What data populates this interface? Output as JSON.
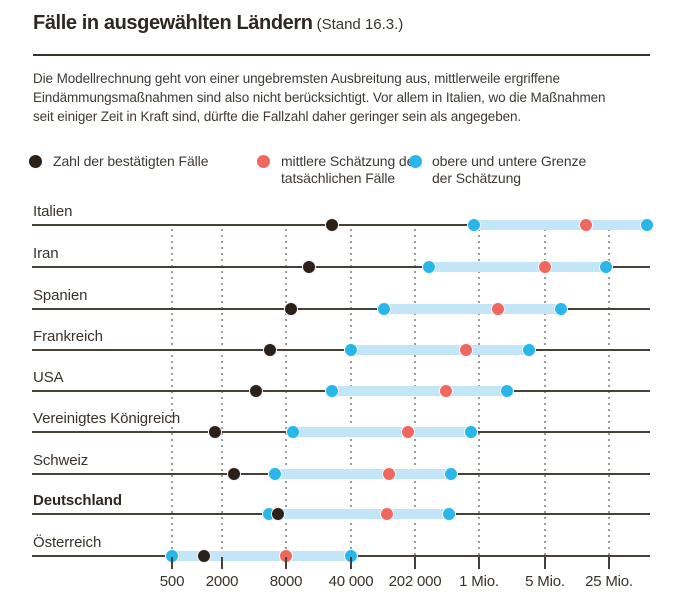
{
  "header": {
    "title": "Fälle in ausgewählten Ländern",
    "date_note": "(Stand 16.3.)"
  },
  "intro": {
    "text": "Die Modellrechnung geht von einer ungebremsten Ausbreitung aus, mittlerweile ergriffene\nEindämmungsmaßnahmen sind also nicht berücksichtigt. Vor allem in Italien, wo die Maßnahmen\nseit einiger Zeit in Kraft sind, dürfte die Fallzahl daher geringer sein als angegeben."
  },
  "legend": {
    "items": [
      {
        "key": "confirmed",
        "label": "Zahl der bestätigten Fälle",
        "color": "#2b2118"
      },
      {
        "key": "estimate_mean",
        "label": "mittlere Schätzung der\ntatsächlichen Fälle",
        "color": "#ef685f"
      },
      {
        "key": "estimate_bounds",
        "label": "obere und untere Grenze\nder Schätzung",
        "color": "#29b7e9"
      }
    ]
  },
  "colors": {
    "confirmed_dot": "#2b2118",
    "mean_dot": "#ef685f",
    "bound_dot": "#29b7e9",
    "band": "#c2e5f7",
    "row_line": "#474038",
    "gridline": "#9c9c9c"
  },
  "chart_data": {
    "type": "dot-range",
    "title": "Fälle in ausgewählten Ländern (Stand 16.3.)",
    "x_axis": {
      "scale": "log",
      "ticks": [
        {
          "label": "500",
          "value": 500
        },
        {
          "label": "2000",
          "value": 2000
        },
        {
          "label": "8000",
          "value": 8000
        },
        {
          "label": "40 000",
          "value": 40000
        },
        {
          "label": "202 000",
          "value": 202000
        },
        {
          "label": "1 Mio.",
          "value": 1000000
        },
        {
          "label": "5 Mio.",
          "value": 5000000
        },
        {
          "label": "25 Mio.",
          "value": 25000000
        }
      ]
    },
    "value_keys": [
      "confirmed",
      "estimate_low",
      "estimate_mean",
      "estimate_high"
    ],
    "rows": [
      {
        "country": "Italien",
        "bold": false,
        "confirmed": 25000,
        "estimate_low": 880000,
        "estimate_mean": 14000000,
        "estimate_high": 65000000
      },
      {
        "country": "Iran",
        "bold": false,
        "confirmed": 14000,
        "estimate_low": 290000,
        "estimate_mean": 5000000,
        "estimate_high": 23000000
      },
      {
        "country": "Spanien",
        "bold": false,
        "confirmed": 9000,
        "estimate_low": 92000,
        "estimate_mean": 1600000,
        "estimate_high": 7500000
      },
      {
        "country": "Frankreich",
        "bold": false,
        "confirmed": 5600,
        "estimate_low": 40000,
        "estimate_mean": 730000,
        "estimate_high": 3400000
      },
      {
        "country": "USA",
        "bold": false,
        "confirmed": 4200,
        "estimate_low": 25000,
        "estimate_mean": 440000,
        "estimate_high": 2000000
      },
      {
        "country": "Vereinigtes Königreich",
        "bold": false,
        "confirmed": 1650,
        "estimate_low": 9500,
        "estimate_mean": 170000,
        "estimate_high": 820000
      },
      {
        "country": "Schweiz",
        "bold": false,
        "confirmed": 2600,
        "estimate_low": 6300,
        "estimate_mean": 105000,
        "estimate_high": 500000
      },
      {
        "country": "Deutschland",
        "bold": true,
        "confirmed": 6700,
        "estimate_low": 5500,
        "estimate_mean": 100000,
        "estimate_high": 470000
      },
      {
        "country": "Österreich",
        "bold": false,
        "confirmed": 1200,
        "estimate_low": 500,
        "estimate_mean": 8000,
        "estimate_high": 40000
      }
    ]
  }
}
